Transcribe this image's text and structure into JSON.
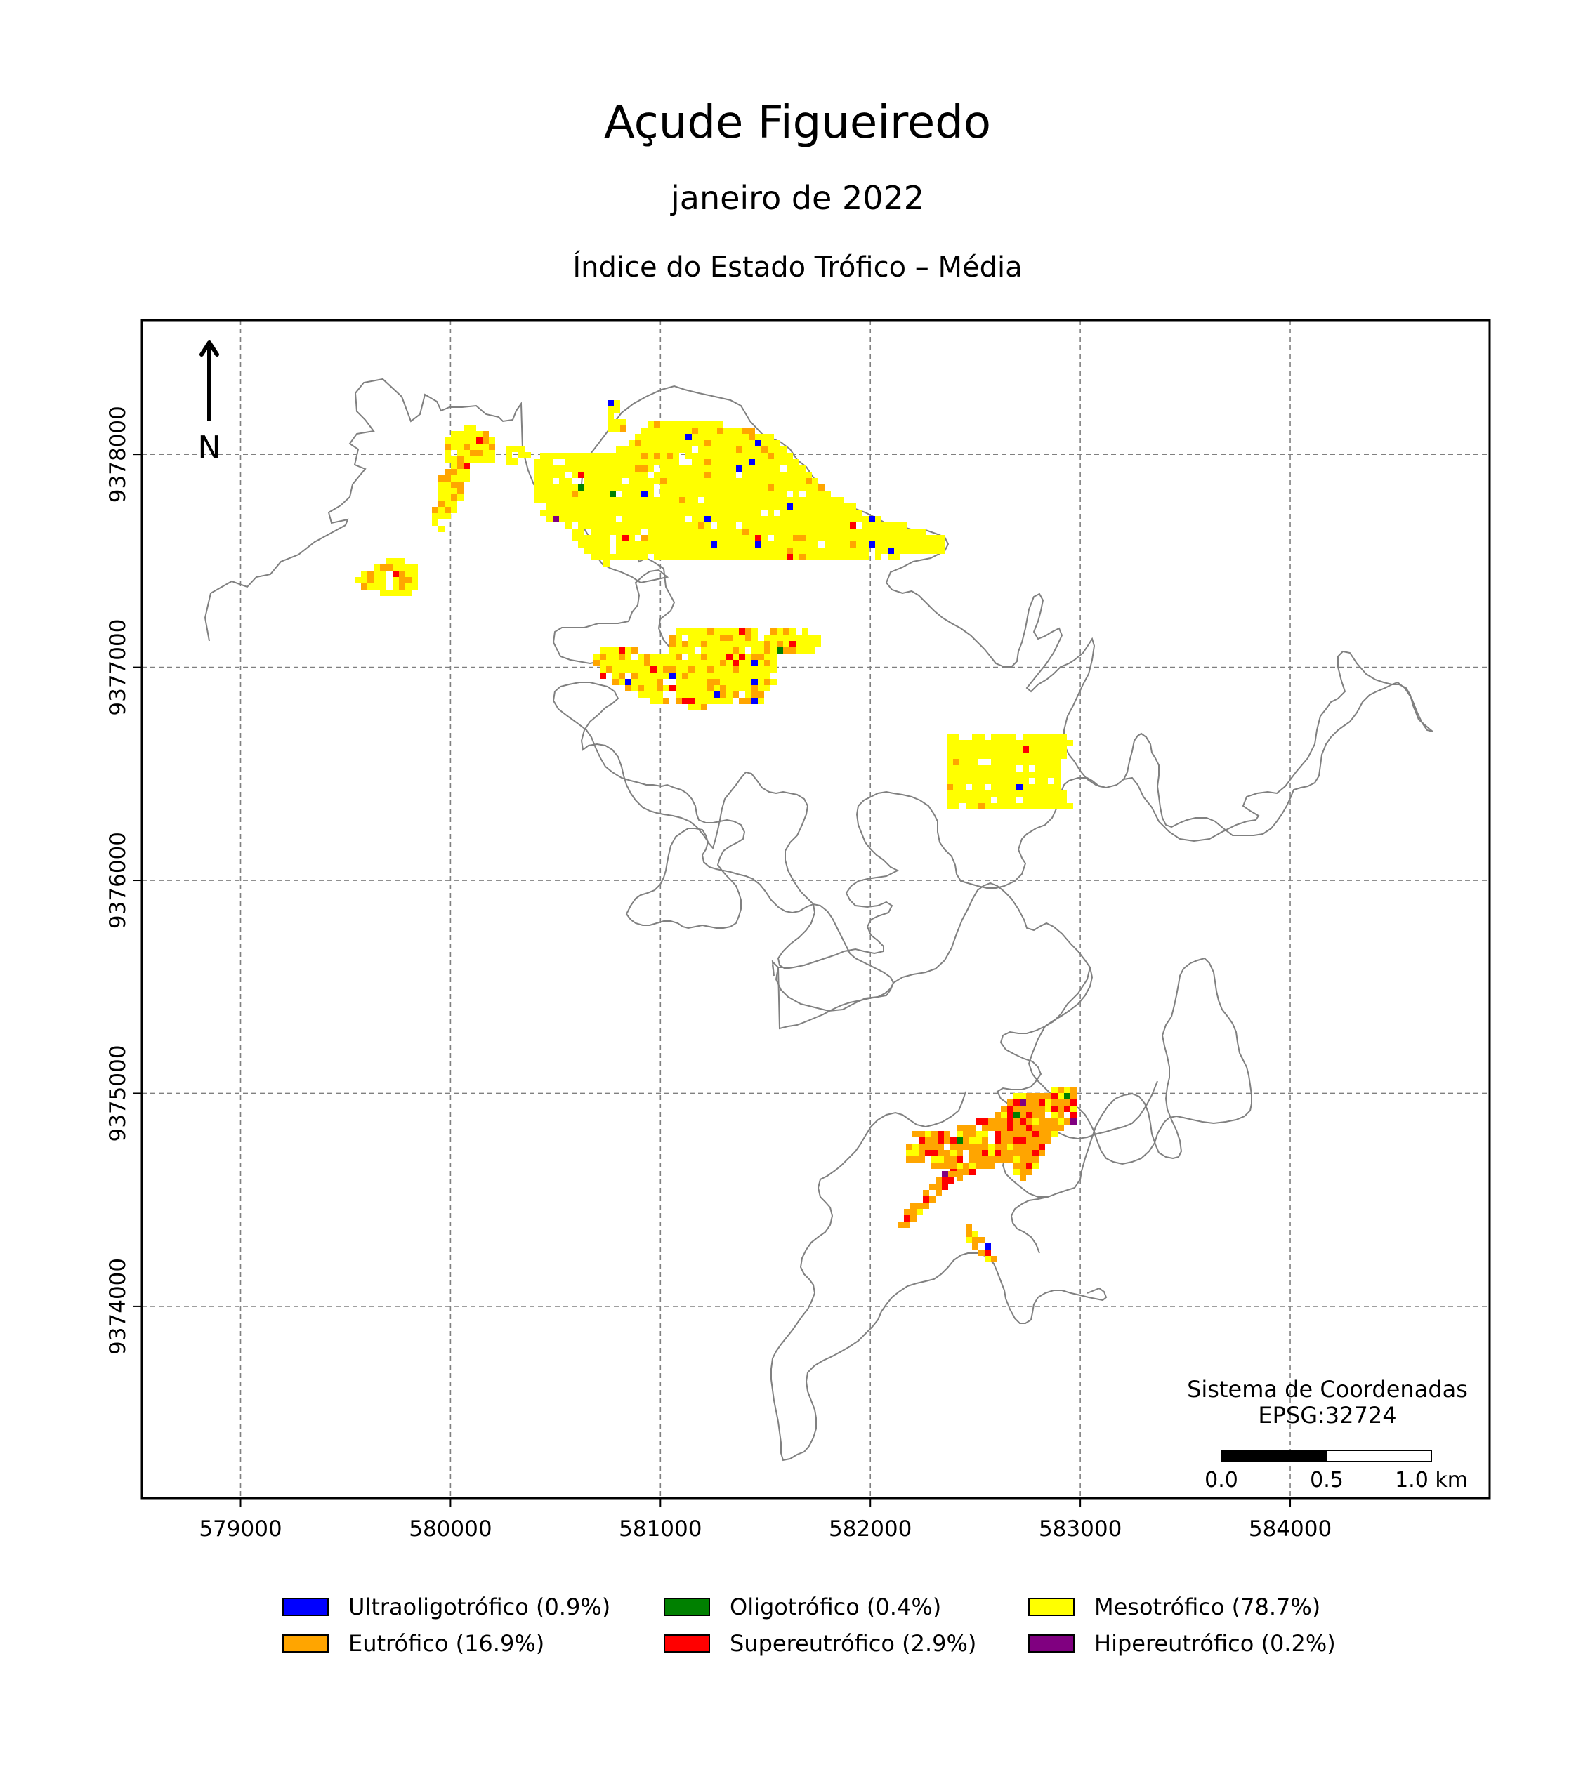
{
  "map": {
    "title": "Açude Figueiredo",
    "subtitle": "janeiro de 2022",
    "index_title": "Índice do Estado Trófico – Média",
    "north_label": "N",
    "crs_label": "Sistema de Coordenadas",
    "crs_code": "EPSG:32724",
    "scalebar": {
      "labels": [
        "0.0",
        "0.5",
        "1.0 km"
      ]
    },
    "x_ticks": [
      579000,
      580000,
      581000,
      582000,
      583000,
      584000
    ],
    "y_ticks": [
      9374000,
      9375000,
      9376000,
      9377000,
      9378000
    ],
    "x_range": [
      578530,
      584950
    ],
    "y_range": [
      9373100,
      9378630
    ],
    "grid": true,
    "legend": [
      {
        "label": "Ultraoligotrófico (0.9%)",
        "color": "#0000ff"
      },
      {
        "label": "Oligotrófico (0.4%)",
        "color": "#008000"
      },
      {
        "label": "Mesotrófico (78.7%)",
        "color": "#ffff00"
      },
      {
        "label": "Eutrófico (16.9%)",
        "color": "#ffa500"
      },
      {
        "label": "Supereutrófico (2.9%)",
        "color": "#ff0000"
      },
      {
        "label": "Hipereutrófico (0.2%)",
        "color": "#800080"
      }
    ]
  }
}
